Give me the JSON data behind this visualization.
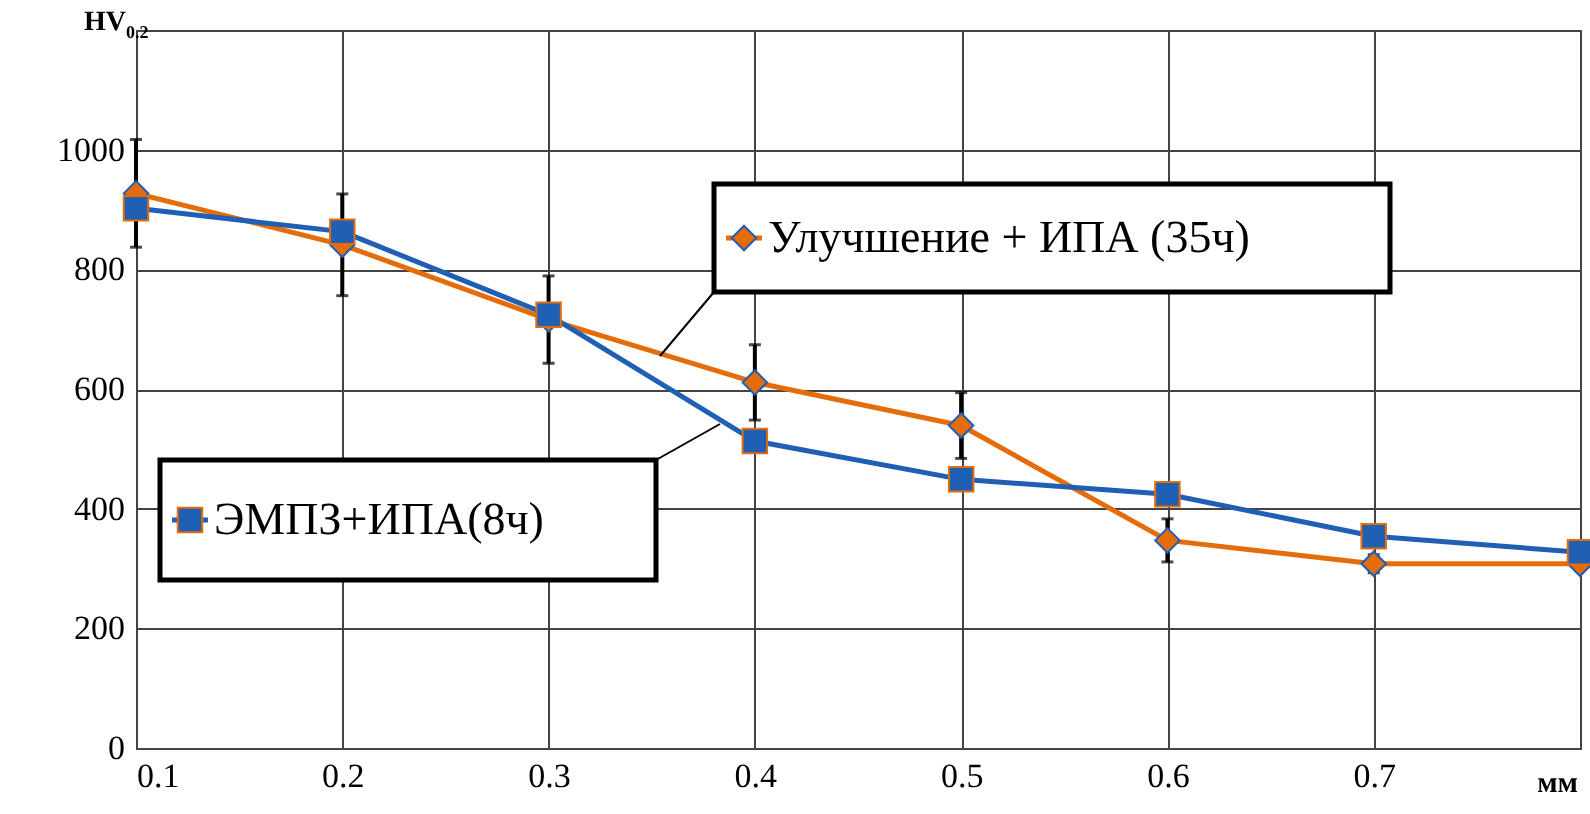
{
  "chart_data": {
    "type": "line",
    "xlabel": "мм",
    "ylabel": "HV$_{0.2}$",
    "x": [
      0.1,
      0.2,
      0.3,
      0.4,
      0.5,
      0.6,
      0.7,
      0.8
    ],
    "series": [
      {
        "name": "Улучшение + ИПА (35ч)",
        "color": "#e46c0a",
        "marker": "diamond",
        "values": [
          927,
          841,
          716,
          611,
          539,
          347,
          308,
          308
        ],
        "errors": [
          90,
          85,
          73,
          63,
          55,
          36,
          15,
          null
        ]
      },
      {
        "name": "ЭМПЗ+ИПА(8ч)",
        "color": "#1f5fb4",
        "marker": "square",
        "values": [
          902,
          863,
          724,
          513,
          449,
          424,
          354,
          327
        ]
      }
    ],
    "xlim": [
      0.1,
      0.8
    ],
    "xticks": [
      0.1,
      0.2,
      0.3,
      0.4,
      0.5,
      0.6,
      0.7
    ],
    "ylim": [
      0,
      1200
    ],
    "yticks": [
      0,
      200,
      400,
      600,
      800,
      1000
    ],
    "grid": true,
    "legend": "top left"
  }
}
